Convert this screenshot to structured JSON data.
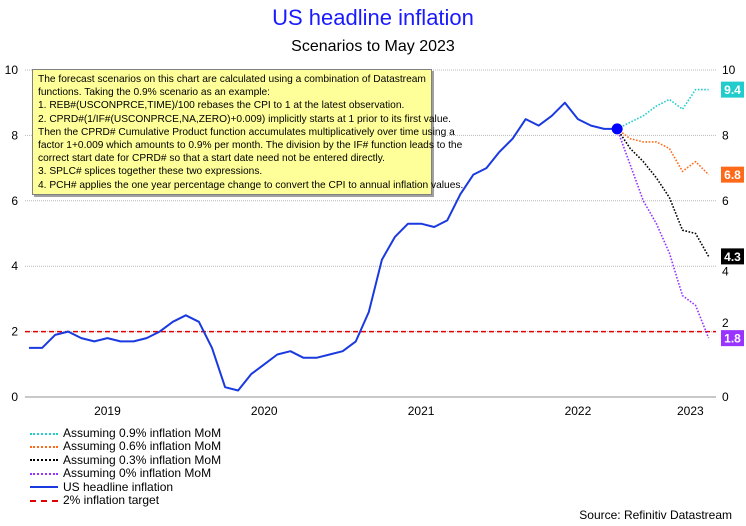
{
  "chart_data": {
    "type": "line",
    "title": "US headline inflation",
    "subtitle": "Scenarios to May 2023",
    "xlabel": "",
    "ylabel": "",
    "ylim": [
      0,
      10
    ],
    "yticks": [
      "0",
      "2",
      "4",
      "6",
      "8",
      "10"
    ],
    "xticks": [
      "2019",
      "2020",
      "2021",
      "2022",
      "2023"
    ],
    "grid": true,
    "legend_position": "bottom-left",
    "series": [
      {
        "name": "Assuming 0.9% inflation MoM",
        "color": "#22cccc",
        "style": "dotted",
        "start_month": "2022-10",
        "values": [
          8.2,
          8.4,
          8.6,
          8.9,
          9.1,
          8.8,
          9.4,
          9.4
        ],
        "end_label": "9.4"
      },
      {
        "name": "Assuming 0.6% inflation MoM",
        "color": "#ff6a1a",
        "style": "dotted",
        "start_month": "2022-10",
        "values": [
          8.2,
          7.9,
          7.8,
          7.8,
          7.6,
          6.9,
          7.2,
          6.8
        ],
        "end_label": "6.8"
      },
      {
        "name": "Assuming 0.3% inflation MoM",
        "color": "#000000",
        "style": "dotted",
        "start_month": "2022-10",
        "values": [
          8.2,
          7.6,
          7.2,
          6.7,
          6.1,
          5.1,
          5.0,
          4.3
        ],
        "end_label": "4.3"
      },
      {
        "name": "Assuming 0% inflation MoM",
        "color": "#9933ff",
        "style": "dotted",
        "start_month": "2022-10",
        "values": [
          8.2,
          7.1,
          6.0,
          5.3,
          4.4,
          3.1,
          2.8,
          1.8
        ],
        "end_label": "1.8"
      },
      {
        "name": "US headline inflation",
        "color": "#1a3ae0",
        "style": "solid",
        "start_month": "2019-01",
        "values": [
          1.5,
          1.5,
          1.9,
          2.0,
          1.8,
          1.7,
          1.8,
          1.7,
          1.7,
          1.8,
          2.0,
          2.3,
          2.5,
          2.3,
          1.5,
          0.3,
          0.2,
          0.7,
          1.0,
          1.3,
          1.4,
          1.2,
          1.2,
          1.3,
          1.4,
          1.7,
          2.6,
          4.2,
          4.9,
          5.3,
          5.3,
          5.2,
          5.4,
          6.2,
          6.8,
          7.0,
          7.5,
          7.9,
          8.5,
          8.3,
          8.6,
          9.0,
          8.5,
          8.3,
          8.2,
          8.2
        ]
      },
      {
        "name": "2% inflation target",
        "color": "#e00000",
        "style": "dashed",
        "constant": 2
      }
    ]
  },
  "annotation": {
    "lines": [
      "The forecast scenarios on this chart are calculated using a combination of Datastream",
      "functions. Taking the 0.9% scenario as an example:",
      "1. REB#(USCONPRCE,TIME)/100 rebases the CPI to 1 at the latest observation.",
      "2. CPRD#(1/IF#(USCONPRCE,NA,ZERO)+0.009) implicitly starts at 1 prior to its first value.",
      "Then the CPRD# Cumulative Product function accumulates multiplicatively over time using a",
      "factor 1+0.009 which amounts to 0.9% per month. The division by the IF# function leads to the",
      "correct start date for CPRD# so that a start date need not be entered directly.",
      "3. SPLC# splices together these two expressions.",
      "4. PCH# applies the one year percentage change to convert the CPI to annual inflation values."
    ]
  },
  "source": "Source: Refinitiv Datastream",
  "colors": {
    "title": "#1a1aff",
    "annotation_bg": "#ffff99",
    "latest_marker": "#0000ff"
  }
}
